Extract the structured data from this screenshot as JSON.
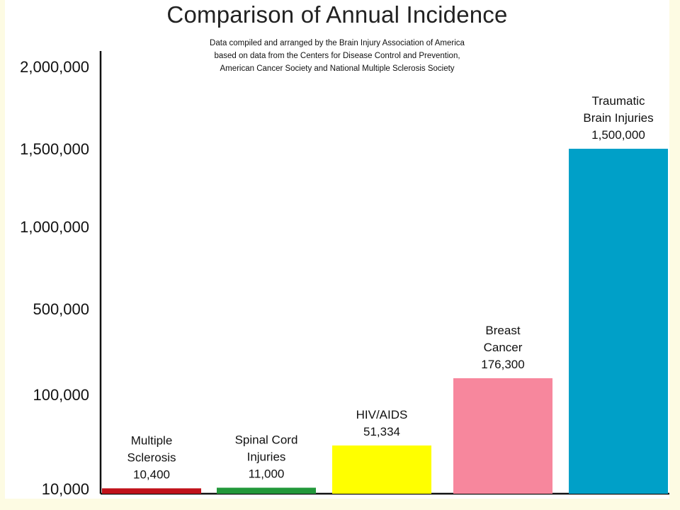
{
  "chart_data": {
    "type": "bar",
    "title": "Comparison of Annual Incidence",
    "subtitle": [
      "Data compiled and arranged by the Brain Injury Association of America",
      "based on data from the Centers for Disease Control and Prevention,",
      "American Cancer Society and National Multiple Sclerosis Society"
    ],
    "xlabel": "",
    "ylabel": "",
    "y_ticks": [
      "10,000",
      "100,000",
      "500,000",
      "1,000,000",
      "1,500,000",
      "2,000,000"
    ],
    "y_tick_values": [
      10000,
      100000,
      500000,
      1000000,
      1500000,
      2000000
    ],
    "ylim": [
      10000,
      2000000
    ],
    "grid": false,
    "categories": [
      "Multiple Sclerosis",
      "Spinal Cord Injuries",
      "HIV/AIDS",
      "Breast Cancer",
      "Traumatic Brain Injuries"
    ],
    "values": [
      10400,
      11000,
      51334,
      176300,
      1500000
    ],
    "bars": [
      {
        "label_lines": [
          "Multiple",
          "Sclerosis",
          "10,400"
        ],
        "value": 10400,
        "color": "#c0111a"
      },
      {
        "label_lines": [
          "Spinal Cord",
          "Injuries",
          "11,000"
        ],
        "value": 11000,
        "color": "#22983a"
      },
      {
        "label_lines": [
          "HIV/AIDS",
          "51,334"
        ],
        "value": 51334,
        "color": "#ffff00"
      },
      {
        "label_lines": [
          "Breast",
          "Cancer",
          "176,300"
        ],
        "value": 176300,
        "color": "#f7879d"
      },
      {
        "label_lines": [
          "Traumatic",
          "Brain Injuries",
          "1,500,000"
        ],
        "value": 1500000,
        "color": "#00a0c8"
      }
    ]
  }
}
